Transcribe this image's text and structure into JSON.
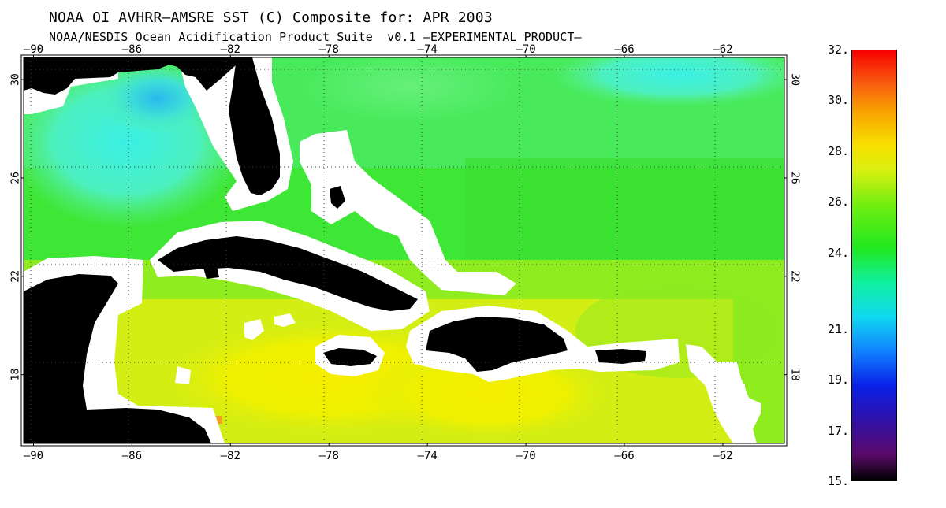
{
  "header": {
    "title": "NOAA OI AVHRR—AMSRE SST (C) Composite for: APR 2003",
    "subtitle": "NOAA/NESDIS Ocean Acidification Product Suite  v0.1 —EXPERIMENTAL PRODUCT—"
  },
  "map": {
    "lon_ticks": [
      "—90",
      "—86",
      "—82",
      "—78",
      "—74",
      "—70",
      "—66",
      "—62"
    ],
    "lon_values": [
      -90,
      -86,
      -82,
      -78,
      -74,
      -70,
      -66,
      -62
    ],
    "lat_ticks": [
      "30",
      "26",
      "22",
      "18"
    ],
    "lat_values": [
      30,
      26,
      22,
      18
    ],
    "lon_range": [
      -90.4,
      -59.5
    ],
    "lat_range": [
      15.2,
      30.9
    ],
    "land_color": "#000000",
    "mask_color": "#ffffff"
  },
  "colorbar": {
    "labels": [
      "32.",
      "30.",
      "28.",
      "26.",
      "24.",
      "21.",
      "19.",
      "17.",
      "15."
    ],
    "values": [
      32,
      30,
      28,
      26,
      24,
      21,
      19,
      17,
      15
    ],
    "range": [
      15,
      32
    ]
  }
}
